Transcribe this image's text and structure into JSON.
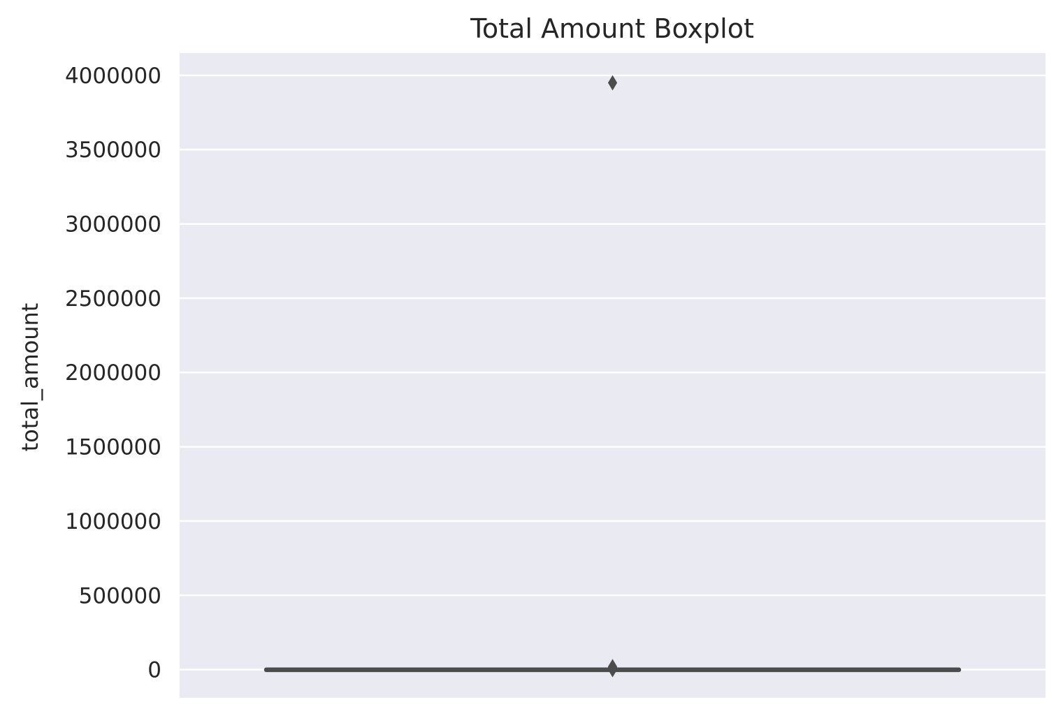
{
  "chart_data": {
    "type": "box",
    "title": "Total Amount Boxplot",
    "xlabel": "",
    "ylabel": "total_amount",
    "ylim": [
      -190000,
      4150000
    ],
    "yticks": [
      0,
      500000,
      1000000,
      1500000,
      2000000,
      2500000,
      3000000,
      3500000,
      4000000
    ],
    "ytick_labels": [
      "0",
      "500000",
      "1000000",
      "1500000",
      "2000000",
      "2500000",
      "3000000",
      "3500000",
      "4000000"
    ],
    "grid": true,
    "series": [
      {
        "whisker_low": 0,
        "q1": 0,
        "median": 0,
        "q3": 0,
        "whisker_high": 0,
        "outliers": [
          0,
          5000,
          10000,
          15000,
          20000,
          3950000
        ]
      }
    ]
  },
  "colors": {
    "plot_background": "#eaeaf2",
    "grid": "#ffffff",
    "box": "#4c4c4c",
    "text": "#262626"
  }
}
